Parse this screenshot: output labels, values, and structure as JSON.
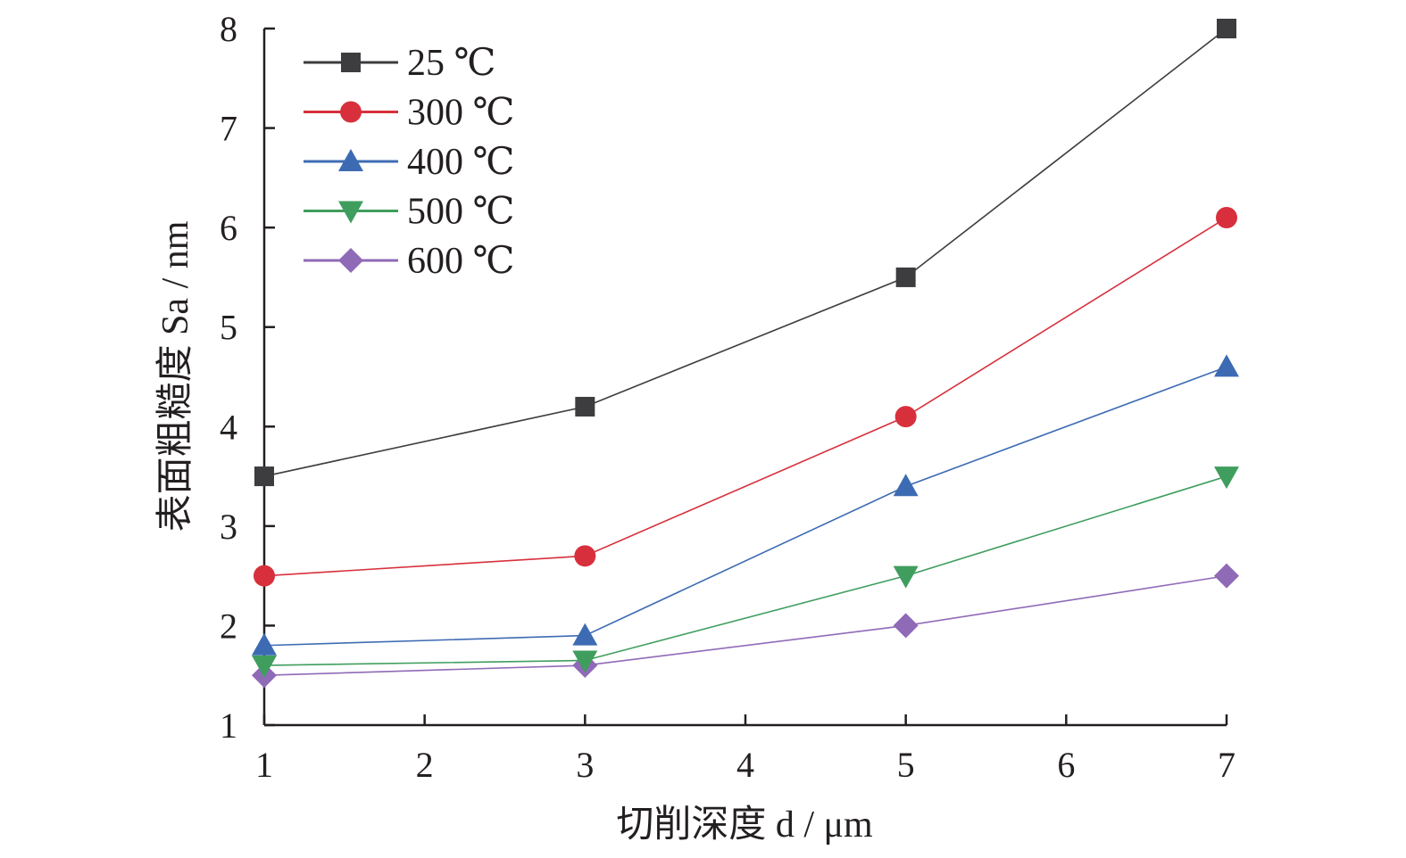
{
  "chart_data": {
    "type": "line",
    "x": [
      1,
      3,
      5,
      7
    ],
    "series": [
      {
        "name": "25 ℃",
        "values": [
          3.5,
          4.2,
          5.5,
          8.0
        ],
        "color": "#3d3c3e",
        "marker": "square"
      },
      {
        "name": "300 ℃",
        "values": [
          2.5,
          2.7,
          4.1,
          6.1
        ],
        "color": "#d7303c",
        "marker": "circle"
      },
      {
        "name": "400 ℃",
        "values": [
          1.8,
          1.9,
          3.4,
          4.6
        ],
        "color": "#3d6bb3",
        "marker": "triangle-up"
      },
      {
        "name": "500 ℃",
        "values": [
          1.6,
          1.65,
          2.5,
          3.5
        ],
        "color": "#3f9e5e",
        "marker": "triangle-down"
      },
      {
        "name": "600 ℃",
        "values": [
          1.5,
          1.6,
          2.0,
          2.5
        ],
        "color": "#8f6ab7",
        "marker": "diamond"
      }
    ],
    "xlabel": "切削深度 d / μm",
    "ylabel": "表面粗糙度 Sa / nm",
    "xlim": [
      1,
      7
    ],
    "ylim": [
      1,
      8
    ],
    "xticks": [
      "1",
      "2",
      "3",
      "4",
      "5",
      "6",
      "7"
    ],
    "yticks": [
      "1",
      "2",
      "3",
      "4",
      "5",
      "6",
      "7",
      "8"
    ],
    "grid": false,
    "legend_position": "top-left"
  }
}
